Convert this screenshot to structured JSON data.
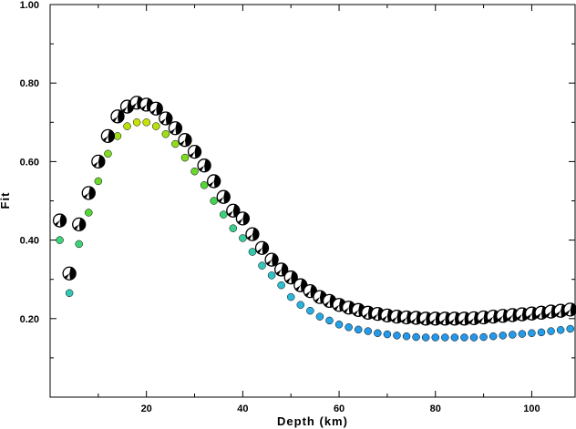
{
  "chart_data": {
    "type": "scatter",
    "title": "",
    "xlabel": "Depth (km)",
    "ylabel": "Fit",
    "xlim": [
      0,
      109
    ],
    "ylim": [
      0,
      1.0
    ],
    "xticks": [
      20,
      40,
      60,
      80,
      100
    ],
    "xtick_labels": [
      "20",
      "40",
      "60",
      "80",
      "100"
    ],
    "yticks": [
      0.2,
      0.4,
      0.6,
      0.8,
      1.0
    ],
    "ytick_labels": [
      "0.20",
      "0.40",
      "0.60",
      "0.80",
      "1.00"
    ],
    "grid": false,
    "legend": "none",
    "mechanism_fill": "#000000",
    "series": [
      {
        "marker": "focal-mechanism",
        "x": [
          2,
          4,
          6,
          8,
          10,
          12,
          14,
          16,
          18,
          20,
          22,
          24,
          26,
          28,
          30,
          32,
          34,
          36,
          38,
          40,
          42,
          44,
          46,
          48,
          50,
          52,
          54,
          56,
          58,
          60,
          62,
          64,
          66,
          68,
          70,
          72,
          74,
          76,
          78,
          80,
          82,
          84,
          86,
          88,
          90,
          92,
          94,
          96,
          98,
          100,
          102,
          104,
          106,
          108
        ],
        "y": [
          0.45,
          0.315,
          0.44,
          0.52,
          0.6,
          0.665,
          0.715,
          0.74,
          0.75,
          0.745,
          0.735,
          0.71,
          0.685,
          0.655,
          0.625,
          0.59,
          0.55,
          0.51,
          0.475,
          0.455,
          0.415,
          0.38,
          0.35,
          0.325,
          0.305,
          0.285,
          0.27,
          0.255,
          0.245,
          0.235,
          0.228,
          0.222,
          0.215,
          0.212,
          0.208,
          0.205,
          0.203,
          0.202,
          0.2,
          0.2,
          0.2,
          0.2,
          0.2,
          0.201,
          0.203,
          0.205,
          0.207,
          0.209,
          0.211,
          0.213,
          0.215,
          0.218,
          0.22,
          0.223
        ]
      },
      {
        "marker": "dot",
        "x": [
          2,
          4,
          6,
          8,
          10,
          12,
          14,
          16,
          18,
          20,
          22,
          24,
          26,
          28,
          30,
          32,
          34,
          36,
          38,
          40,
          42,
          44,
          46,
          48,
          50,
          52,
          54,
          56,
          58,
          60,
          62,
          64,
          66,
          68,
          70,
          72,
          74,
          76,
          78,
          80,
          82,
          84,
          86,
          88,
          90,
          92,
          94,
          96,
          98,
          100,
          102,
          104,
          106,
          108
        ],
        "y": [
          0.4,
          0.265,
          0.39,
          0.47,
          0.55,
          0.62,
          0.665,
          0.69,
          0.7,
          0.7,
          0.69,
          0.67,
          0.645,
          0.61,
          0.575,
          0.54,
          0.5,
          0.465,
          0.43,
          0.405,
          0.37,
          0.335,
          0.31,
          0.285,
          0.255,
          0.235,
          0.22,
          0.205,
          0.195,
          0.185,
          0.178,
          0.172,
          0.168,
          0.163,
          0.16,
          0.157,
          0.155,
          0.153,
          0.152,
          0.152,
          0.152,
          0.152,
          0.152,
          0.152,
          0.153,
          0.155,
          0.157,
          0.159,
          0.161,
          0.163,
          0.165,
          0.168,
          0.171,
          0.174
        ],
        "colors": [
          "#3fd27a",
          "#35c6b4",
          "#3fd27a",
          "#55d53a",
          "#6ad82f",
          "#7ddb22",
          "#a0de14",
          "#b8e00c",
          "#c6e208",
          "#c6e208",
          "#b8e00c",
          "#a0de14",
          "#8fdc1b",
          "#7ddb22",
          "#6ad82f",
          "#55d53a",
          "#46d24f",
          "#3fd27a",
          "#3bd08e",
          "#39cc9f",
          "#36c8ad",
          "#34c5bc",
          "#31c2c8",
          "#2fbdd0",
          "#2db8d8",
          "#2bb2dc",
          "#29ade0",
          "#28a8e2",
          "#27a4e4",
          "#26a1e5",
          "#269ee6",
          "#259ce7",
          "#259ae8",
          "#2599e8",
          "#2598e8",
          "#2597e9",
          "#2597e9",
          "#2596e9",
          "#2596e9",
          "#2596e9",
          "#2596e9",
          "#2596e9",
          "#2596e9",
          "#2596e9",
          "#2597e9",
          "#2598e8",
          "#2599e8",
          "#259ae8",
          "#259be8",
          "#259ce7",
          "#259de7",
          "#269fe6",
          "#26a0e6",
          "#26a2e5"
        ]
      }
    ]
  }
}
